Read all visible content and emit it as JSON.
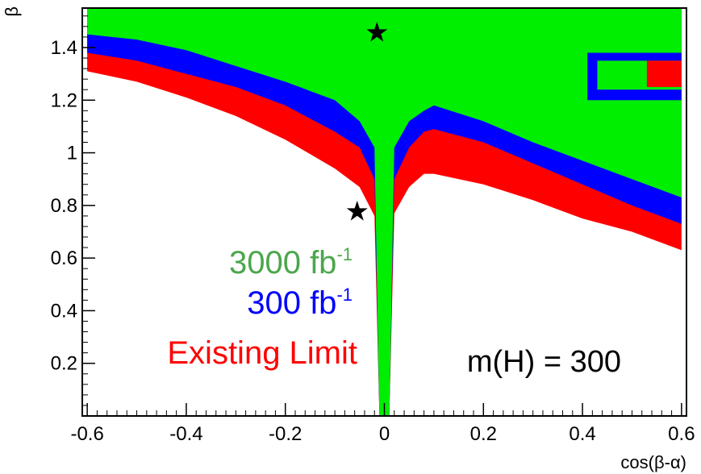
{
  "chart_data": {
    "type": "area",
    "xlabel": "cos(β-α)",
    "ylabel": "β",
    "xlim": [
      -0.61,
      0.61
    ],
    "ylim": [
      0.0,
      1.55
    ],
    "x_ticks": [
      -0.6,
      -0.4,
      -0.2,
      0,
      0.2,
      0.4,
      0.6
    ],
    "x_tick_labels": [
      "-0.6",
      "-0.4",
      "-0.2",
      "0",
      "0.2",
      "0.4",
      "0.6"
    ],
    "y_ticks": [
      0.2,
      0.4,
      0.6,
      0.8,
      1.0,
      1.2,
      1.4
    ],
    "y_tick_labels": [
      "0.2",
      "0.4",
      "0.6",
      "0.8",
      "1",
      "1.2",
      "1.4"
    ],
    "grid": false,
    "annotation": "m(H) = 300",
    "series": [
      {
        "name": "Existing Limit",
        "color": "#ff0000",
        "boundary": [
          [
            -0.6,
            1.31
          ],
          [
            -0.5,
            1.27
          ],
          [
            -0.4,
            1.21
          ],
          [
            -0.3,
            1.14
          ],
          [
            -0.2,
            1.05
          ],
          [
            -0.1,
            0.94
          ],
          [
            -0.05,
            0.87
          ],
          [
            -0.02,
            0.76
          ],
          [
            -0.01,
            0.0
          ],
          [
            0.01,
            0.0
          ],
          [
            0.02,
            0.77
          ],
          [
            0.05,
            0.87
          ],
          [
            0.08,
            0.92
          ],
          [
            0.1,
            0.92
          ],
          [
            0.2,
            0.88
          ],
          [
            0.3,
            0.82
          ],
          [
            0.4,
            0.75
          ],
          [
            0.5,
            0.7
          ],
          [
            0.6,
            0.63
          ]
        ]
      },
      {
        "name": "300 fb-1",
        "color": "#0000ff",
        "boundary": [
          [
            -0.6,
            1.38
          ],
          [
            -0.5,
            1.35
          ],
          [
            -0.4,
            1.3
          ],
          [
            -0.3,
            1.25
          ],
          [
            -0.2,
            1.18
          ],
          [
            -0.1,
            1.08
          ],
          [
            -0.05,
            1.02
          ],
          [
            -0.02,
            0.9
          ],
          [
            -0.01,
            0.0
          ],
          [
            0.01,
            0.0
          ],
          [
            0.02,
            0.9
          ],
          [
            0.05,
            1.02
          ],
          [
            0.08,
            1.08
          ],
          [
            0.1,
            1.09
          ],
          [
            0.2,
            1.04
          ],
          [
            0.3,
            0.96
          ],
          [
            0.4,
            0.88
          ],
          [
            0.5,
            0.8
          ],
          [
            0.6,
            0.73
          ]
        ],
        "island": {
          "x": [
            0.41,
            0.6
          ],
          "y": [
            1.2,
            1.38
          ]
        }
      },
      {
        "name": "3000 fb-1",
        "color": "#00ee00",
        "boundary": [
          [
            -0.6,
            1.45
          ],
          [
            -0.5,
            1.43
          ],
          [
            -0.4,
            1.39
          ],
          [
            -0.3,
            1.33
          ],
          [
            -0.2,
            1.27
          ],
          [
            -0.1,
            1.2
          ],
          [
            -0.05,
            1.12
          ],
          [
            -0.02,
            1.02
          ],
          [
            -0.01,
            0.0
          ],
          [
            0.01,
            0.0
          ],
          [
            0.02,
            1.02
          ],
          [
            0.05,
            1.12
          ],
          [
            0.08,
            1.16
          ],
          [
            0.1,
            1.18
          ],
          [
            0.2,
            1.12
          ],
          [
            0.3,
            1.04
          ],
          [
            0.4,
            0.97
          ],
          [
            0.5,
            0.9
          ],
          [
            0.6,
            0.83
          ]
        ],
        "island": {
          "x": [
            0.43,
            0.6
          ],
          "y": [
            1.24,
            1.35
          ]
        },
        "inner_red": {
          "x": [
            0.53,
            0.6
          ],
          "y": [
            1.25,
            1.35
          ]
        }
      }
    ],
    "markers": [
      {
        "symbol": "★",
        "x": -0.015,
        "y": 1.46
      },
      {
        "symbol": "★",
        "x": -0.055,
        "y": 0.78
      }
    ]
  },
  "legend": {
    "green": {
      "text": "3000 fb",
      "sup": "-1",
      "color": "#4ca64c"
    },
    "blue": {
      "text": "300 fb",
      "sup": "-1",
      "color": "#0000ff"
    },
    "red": {
      "text": "Existing Limit",
      "color": "#ff0000"
    }
  }
}
